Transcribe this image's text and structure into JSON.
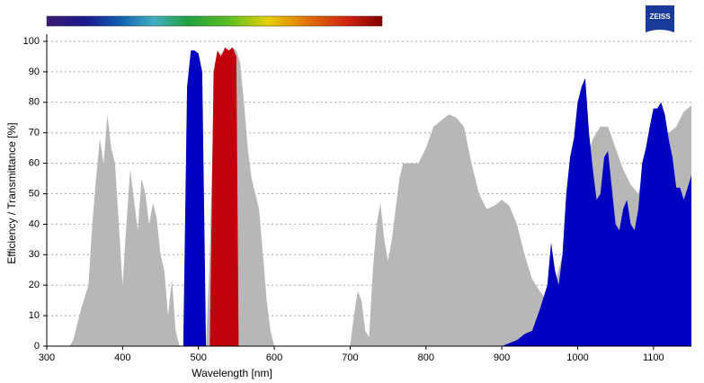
{
  "logo": "ZEISS",
  "chart_data": {
    "type": "area",
    "x_label": "Wavelength [nm]",
    "y_label": "Efficiency / Transmittance [%]",
    "xlim": [
      300,
      1150
    ],
    "xticks": [
      300,
      400,
      500,
      600,
      700,
      800,
      900,
      1000,
      1100
    ],
    "ylim": [
      0,
      100
    ],
    "yticks": [
      0,
      10,
      20,
      30,
      40,
      50,
      60,
      70,
      80,
      90,
      100
    ],
    "grid": true,
    "series": [
      {
        "color": "#b7b7b7",
        "x": [
          330,
          335,
          345,
          355,
          360,
          365,
          370,
          375,
          380,
          385,
          390,
          395,
          400,
          405,
          410,
          415,
          420,
          425,
          430,
          435,
          440,
          445,
          450,
          455,
          460,
          465,
          470,
          475,
          510,
          515,
          520,
          525,
          530,
          535,
          540,
          545,
          550,
          555,
          560,
          565,
          570,
          575,
          580,
          585,
          590,
          595,
          600,
          700,
          705,
          710,
          715,
          720,
          725,
          730,
          735,
          740,
          745,
          750,
          755,
          760,
          765,
          770,
          780,
          790,
          800,
          810,
          820,
          830,
          840,
          850,
          860,
          870,
          880,
          890,
          900,
          910,
          920,
          930,
          940,
          950,
          960,
          970,
          980,
          990,
          1000,
          1010,
          1020,
          1030,
          1040,
          1050,
          1060,
          1070,
          1080,
          1090,
          1100,
          1110,
          1120,
          1130,
          1140,
          1150
        ],
        "values": [
          0,
          2,
          12,
          20,
          40,
          55,
          68,
          60,
          76,
          65,
          60,
          40,
          20,
          40,
          58,
          48,
          38,
          55,
          50,
          40,
          47,
          42,
          30,
          25,
          10,
          22,
          5,
          0,
          0,
          30,
          80,
          95,
          96,
          97,
          97,
          98,
          97,
          93,
          80,
          65,
          55,
          50,
          45,
          30,
          15,
          5,
          0,
          0,
          10,
          18,
          15,
          5,
          3,
          25,
          40,
          47,
          35,
          28,
          35,
          45,
          55,
          60,
          60,
          60,
          65,
          72,
          74,
          76,
          75,
          72,
          60,
          50,
          45,
          46,
          48,
          46,
          40,
          30,
          22,
          18,
          15,
          20,
          30,
          40,
          50,
          60,
          68,
          72,
          72,
          65,
          58,
          53,
          50,
          60,
          68,
          72,
          70,
          72,
          77,
          79
        ]
      },
      {
        "color": "#0000c0",
        "x": [
          480,
          485,
          490,
          495,
          500,
          505,
          510,
          700,
          900,
          910,
          920,
          930,
          940,
          950,
          960,
          965,
          970,
          975,
          980,
          985,
          990,
          995,
          1000,
          1005,
          1010,
          1015,
          1020,
          1025,
          1030,
          1035,
          1040,
          1045,
          1050,
          1055,
          1060,
          1065,
          1070,
          1075,
          1080,
          1085,
          1090,
          1095,
          1100,
          1105,
          1110,
          1115,
          1120,
          1125,
          1130,
          1135,
          1140,
          1145,
          1150
        ],
        "values": [
          0,
          85,
          97,
          97,
          96,
          90,
          0,
          null,
          0,
          1,
          2,
          4,
          5,
          12,
          20,
          34,
          25,
          20,
          30,
          50,
          62,
          68,
          80,
          85,
          88,
          70,
          58,
          48,
          50,
          62,
          64,
          52,
          40,
          38,
          45,
          48,
          40,
          38,
          45,
          60,
          65,
          72,
          78,
          78,
          80,
          76,
          68,
          62,
          52,
          52,
          48,
          52,
          56
        ]
      },
      {
        "color": "#c0000c",
        "x": [
          515,
          520,
          525,
          530,
          535,
          540,
          545,
          550,
          553
        ],
        "values": [
          0,
          90,
          97,
          95,
          98,
          97,
          98,
          95,
          0
        ]
      }
    ]
  }
}
